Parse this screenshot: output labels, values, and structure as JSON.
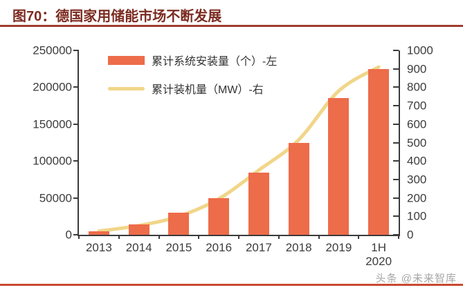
{
  "header": {
    "title": "图70：德国家用储能市场不断发展"
  },
  "watermark": {
    "text": "头条 @未来智库"
  },
  "colors": {
    "bar": "#ED6C4A",
    "line": "#F1D689",
    "title": "#7C2B21",
    "title_rule": "#9E3D2C",
    "bottom_rule": "#C8492E",
    "axis": "#3A3A3A",
    "tick_label": "#3C3C3C",
    "watermark": "#A6A6A6"
  },
  "chart_data": {
    "type": "bar+line",
    "title": "图70：德国家用储能市场不断发展",
    "categories": [
      "2013",
      "2014",
      "2015",
      "2016",
      "2017",
      "2018",
      "2019",
      "1H 2020"
    ],
    "series": [
      {
        "name": "累计系统安装量（个）-左",
        "type": "bar",
        "axis": "left",
        "color": "#ED6C4A",
        "values": [
          5000,
          14000,
          30000,
          50000,
          84000,
          125000,
          185000,
          225000
        ]
      },
      {
        "name": "累计装机量（MW）-右",
        "type": "line",
        "axis": "right",
        "color": "#F1D689",
        "values": [
          20,
          50,
          100,
          195,
          350,
          515,
          780,
          910
        ]
      }
    ],
    "left_axis": {
      "min": 0,
      "max": 250000,
      "step": 50000,
      "tick_labels": [
        "0",
        "50000",
        "100000",
        "150000",
        "200000",
        "250000"
      ]
    },
    "right_axis": {
      "min": 0,
      "max": 1000,
      "step": 100,
      "tick_labels": [
        "0",
        "100",
        "200",
        "300",
        "400",
        "500",
        "600",
        "700",
        "800",
        "900",
        "1000"
      ]
    },
    "legend_position": "top-left-inside",
    "grid": false
  }
}
